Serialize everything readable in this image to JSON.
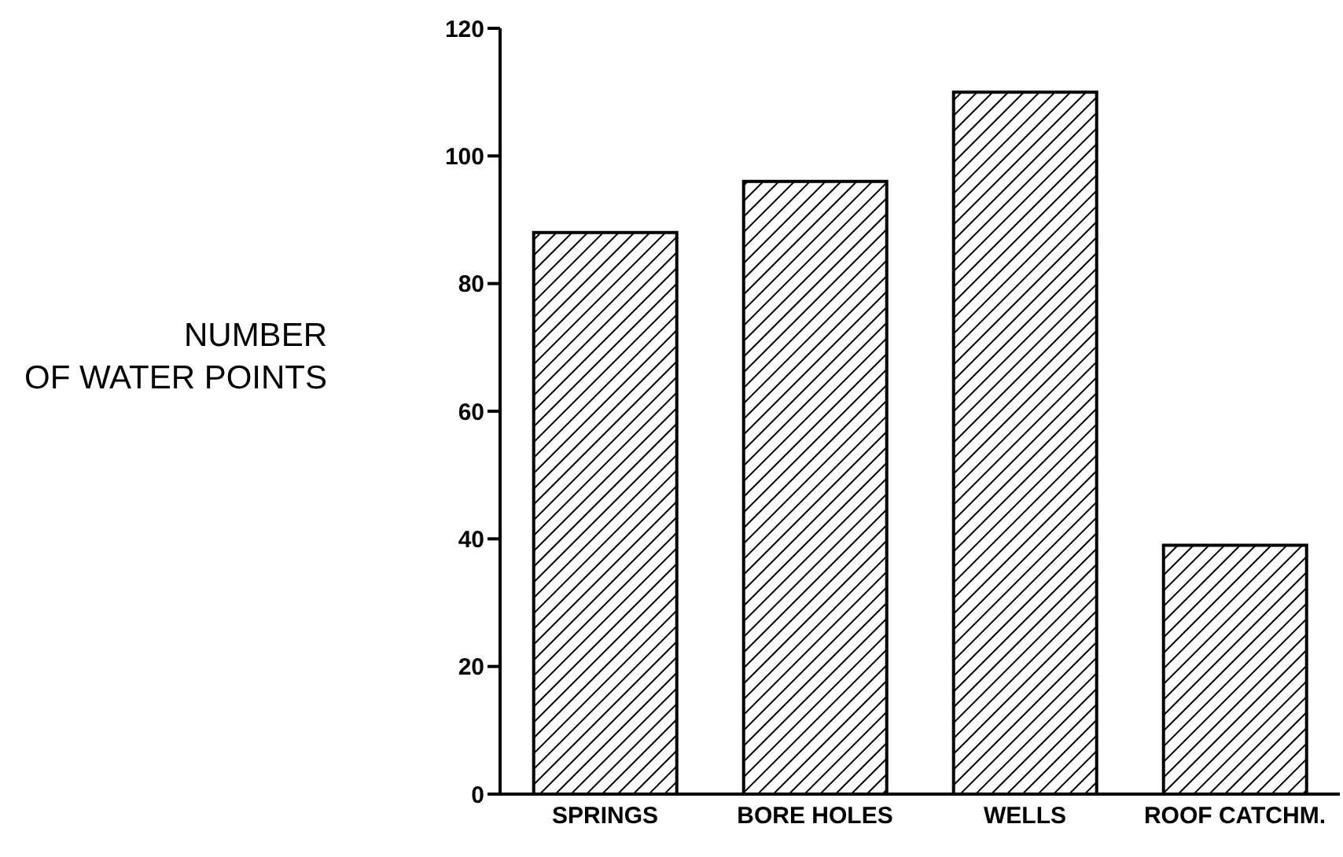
{
  "chart_data": {
    "type": "bar",
    "ylabel": "NUMBER OF WATER POINTS",
    "categories": [
      "SPRINGS",
      "BORE HOLES",
      "WELLS",
      "ROOF CATCHM."
    ],
    "values": [
      88,
      96,
      110,
      39
    ],
    "color": "#000000",
    "ylim": [
      0,
      120
    ],
    "yticks": [
      0,
      20,
      40,
      60,
      80,
      100,
      120
    ],
    "grid": false,
    "legend": false
  }
}
